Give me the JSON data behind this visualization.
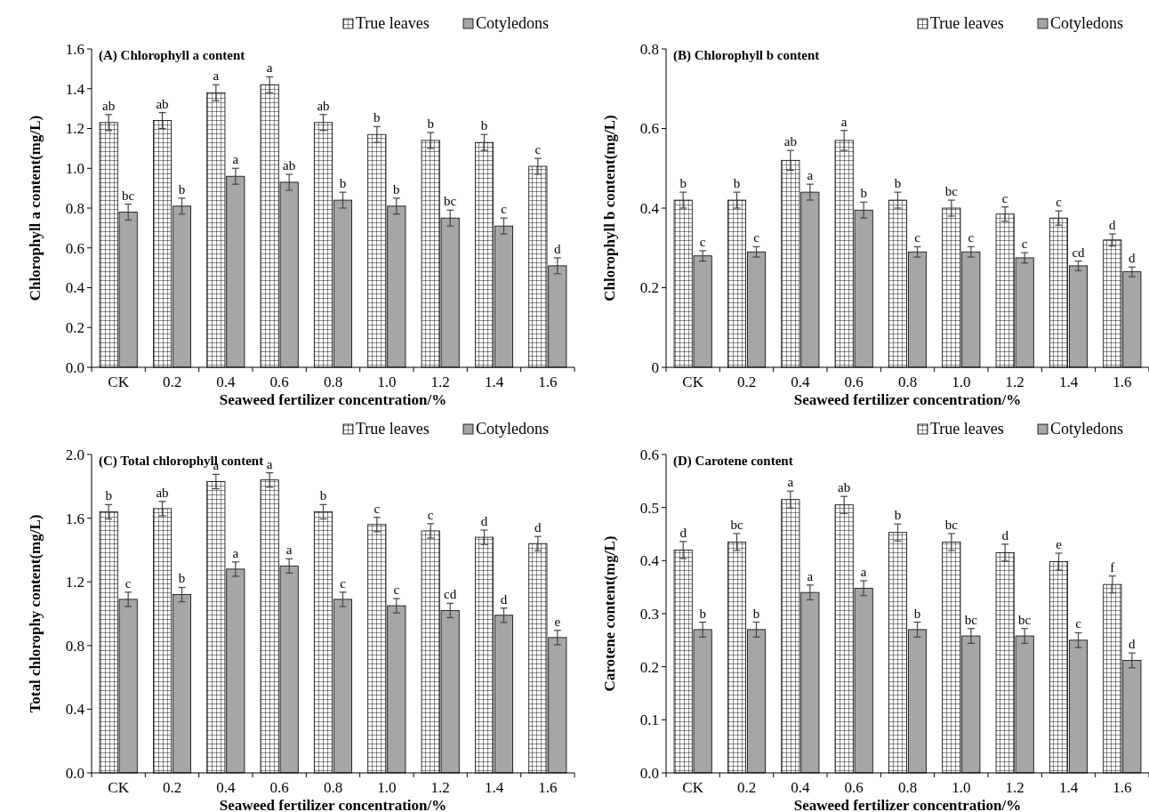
{
  "chart_data": [
    {
      "type": "bar",
      "title": "(A) Chlorophyll a content",
      "xlabel": "Seaweed fertilizer concentration/%",
      "ylabel": "Chlorophyll a content(mg/L)",
      "categories": [
        "CK",
        "0.2",
        "0.4",
        "0.6",
        "0.8",
        "1.0",
        "1.2",
        "1.4",
        "1.6"
      ],
      "ylim": [
        0,
        1.6
      ],
      "yticks": [
        {
          "value": 0,
          "label": "0.0"
        },
        0.2,
        0.4,
        0.6,
        0.8,
        {
          "value": 1,
          "label": "1.0"
        },
        1.2,
        1.4,
        1.6
      ],
      "legend": "top right",
      "series": [
        {
          "name": "True leaves",
          "color": "#000000",
          "values": [
            1.23,
            1.24,
            1.38,
            1.42,
            1.23,
            1.17,
            1.14,
            1.13,
            1.01
          ],
          "errors": [
            0.04,
            0.04,
            0.04,
            0.04,
            0.04,
            0.04,
            0.04,
            0.04,
            0.04
          ],
          "value_labels": [
            "ab",
            "ab",
            "a",
            "a",
            "ab",
            "b",
            "b",
            "b",
            "c"
          ]
        },
        {
          "name": "Cotyledons",
          "color": "#a6a6a6",
          "values": [
            0.78,
            0.81,
            0.96,
            0.93,
            0.84,
            0.81,
            0.75,
            0.71,
            0.51
          ],
          "errors": [
            0.04,
            0.04,
            0.04,
            0.04,
            0.04,
            0.04,
            0.04,
            0.04,
            0.04
          ],
          "value_labels": [
            "bc",
            "b",
            "a",
            "ab",
            "b",
            "b",
            "bc",
            "c",
            "d"
          ]
        }
      ]
    },
    {
      "type": "bar",
      "title": "(B) Chlorophyll b content",
      "xlabel": "Seaweed fertilizer concentration/%",
      "ylabel": "Chlorophyll b content(mg/L)",
      "categories": [
        "CK",
        "0.2",
        "0.4",
        "0.6",
        "0.8",
        "1.0",
        "1.2",
        "1.4",
        "1.6"
      ],
      "ylim": [
        0,
        0.8
      ],
      "yticks": [
        {
          "value": 0,
          "label": "0"
        },
        0.2,
        0.4,
        0.6,
        0.8
      ],
      "legend": "top right",
      "series": [
        {
          "name": "True leaves",
          "color": "#000000",
          "values": [
            0.42,
            0.42,
            0.52,
            0.57,
            0.42,
            0.4,
            0.385,
            0.375,
            0.32
          ],
          "errors": [
            0.02,
            0.02,
            0.025,
            0.025,
            0.02,
            0.02,
            0.018,
            0.018,
            0.015
          ],
          "value_labels": [
            "b",
            "b",
            "ab",
            "a",
            "b",
            "bc",
            "c",
            "c",
            "d"
          ]
        },
        {
          "name": "Cotyledons",
          "color": "#a6a6a6",
          "values": [
            0.28,
            0.29,
            0.44,
            0.395,
            0.29,
            0.29,
            0.275,
            0.255,
            0.24
          ],
          "errors": [
            0.013,
            0.013,
            0.02,
            0.02,
            0.013,
            0.013,
            0.013,
            0.012,
            0.012
          ],
          "value_labels": [
            "c",
            "c",
            "a",
            "b",
            "c",
            "c",
            "c",
            "cd",
            "d"
          ]
        }
      ]
    },
    {
      "type": "bar",
      "title": "(C) Total chlorophyll content",
      "xlabel": "Seaweed fertilizer concentration/%",
      "ylabel": "Total chlorophy content(mg/L)",
      "categories": [
        "CK",
        "0.2",
        "0.4",
        "0.6",
        "0.8",
        "1.0",
        "1.2",
        "1.4",
        "1.6"
      ],
      "ylim": [
        0,
        2
      ],
      "yticks": [
        {
          "value": 0,
          "label": "0.0"
        },
        0.4,
        0.8,
        1.2,
        1.6,
        {
          "value": 2,
          "label": "2.0"
        }
      ],
      "legend": "top right",
      "series": [
        {
          "name": "True leaves",
          "color": "#000000",
          "values": [
            1.64,
            1.66,
            1.83,
            1.84,
            1.64,
            1.56,
            1.52,
            1.48,
            1.44
          ],
          "errors": [
            0.045,
            0.045,
            0.045,
            0.045,
            0.045,
            0.045,
            0.045,
            0.045,
            0.045
          ],
          "value_labels": [
            "b",
            "ab",
            "a",
            "a",
            "b",
            "c",
            "c",
            "d",
            "d"
          ]
        },
        {
          "name": "Cotyledons",
          "color": "#a6a6a6",
          "values": [
            1.09,
            1.12,
            1.28,
            1.3,
            1.09,
            1.05,
            1.02,
            0.99,
            0.85
          ],
          "errors": [
            0.045,
            0.045,
            0.045,
            0.045,
            0.045,
            0.045,
            0.045,
            0.045,
            0.045
          ],
          "value_labels": [
            "c",
            "b",
            "a",
            "a",
            "c",
            "c",
            "cd",
            "d",
            "e"
          ]
        }
      ]
    },
    {
      "type": "bar",
      "title": "(D) Carotene content",
      "xlabel": "Seaweed fertilizer concentration/%",
      "ylabel": "Carotene content(mg/L)",
      "categories": [
        "CK",
        "0.2",
        "0.4",
        "0.6",
        "0.8",
        "1.0",
        "1.2",
        "1.4",
        "1.6"
      ],
      "ylim": [
        0,
        0.6
      ],
      "yticks": [
        {
          "value": 0,
          "label": "0.0"
        },
        0.1,
        0.2,
        0.3,
        0.4,
        0.5,
        0.6
      ],
      "legend": "top right",
      "series": [
        {
          "name": "True leaves",
          "color": "#000000",
          "values": [
            0.42,
            0.435,
            0.515,
            0.505,
            0.453,
            0.435,
            0.415,
            0.398,
            0.355
          ],
          "errors": [
            0.016,
            0.016,
            0.016,
            0.016,
            0.016,
            0.016,
            0.016,
            0.016,
            0.016
          ],
          "value_labels": [
            "d",
            "bc",
            "a",
            "ab",
            "b",
            "bc",
            "d",
            "e",
            "f"
          ]
        },
        {
          "name": "Cotyledons",
          "color": "#a6a6a6",
          "values": [
            0.27,
            0.27,
            0.34,
            0.348,
            0.27,
            0.258,
            0.258,
            0.25,
            0.212
          ],
          "errors": [
            0.014,
            0.014,
            0.014,
            0.014,
            0.014,
            0.014,
            0.014,
            0.014,
            0.014
          ],
          "value_labels": [
            "b",
            "b",
            "a",
            "a",
            "b",
            "bc",
            "bc",
            "c",
            "d"
          ]
        }
      ]
    }
  ]
}
